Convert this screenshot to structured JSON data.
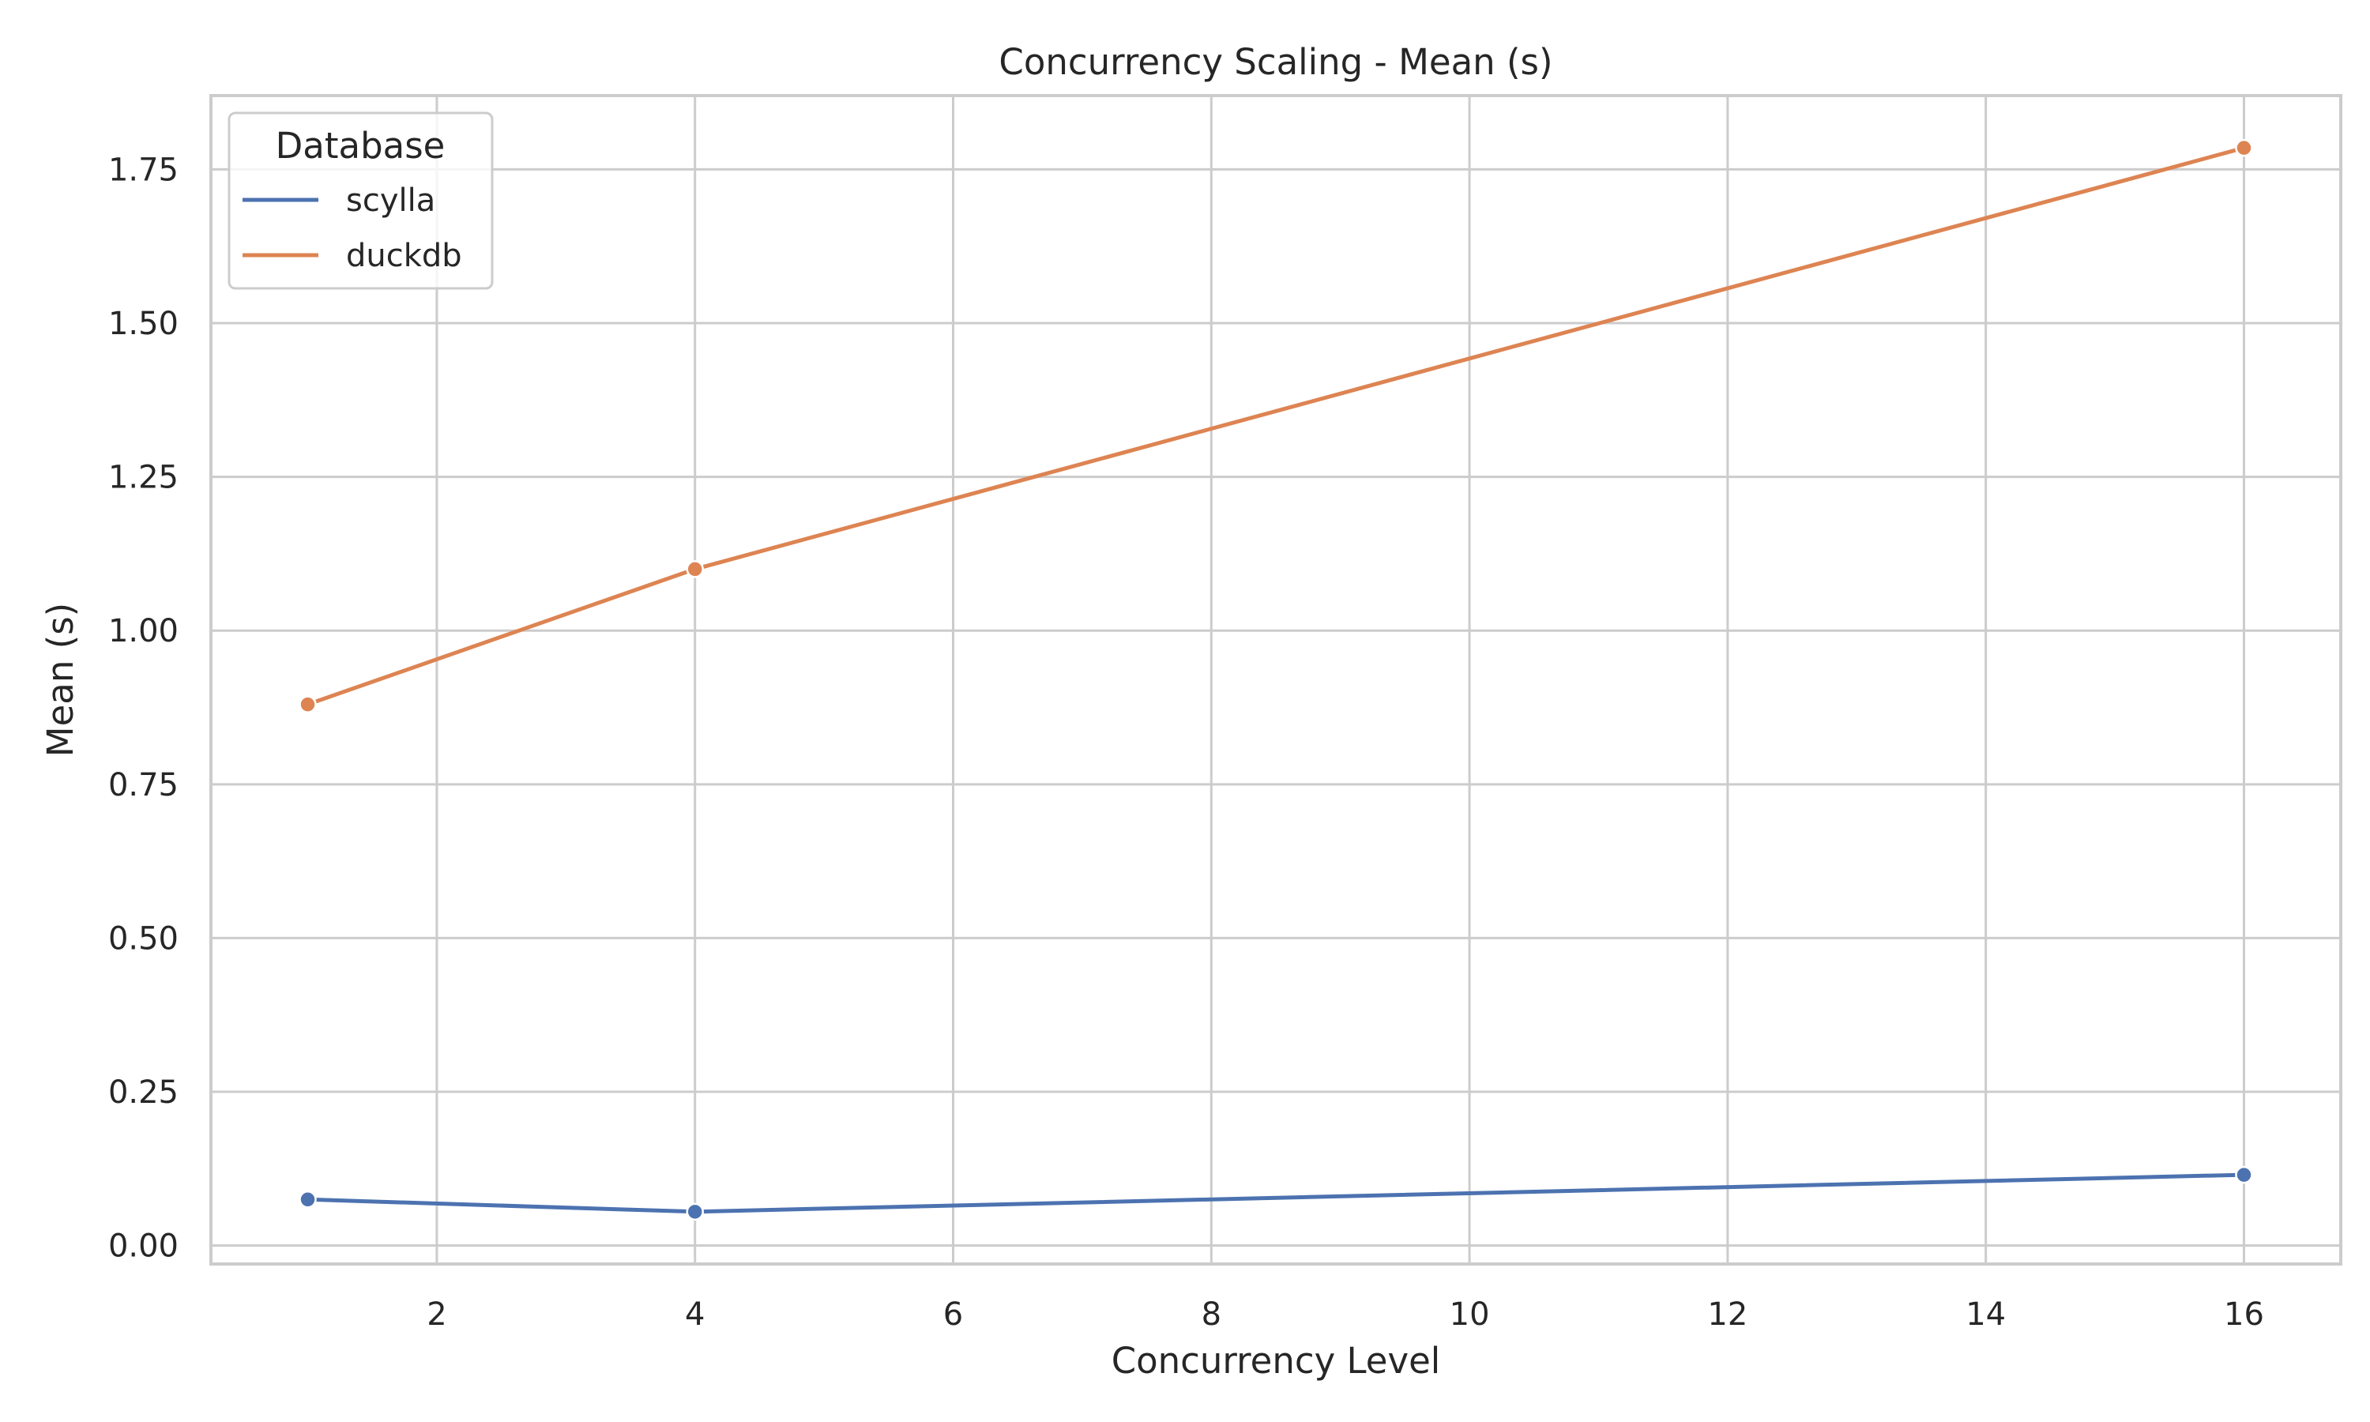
{
  "chart_data": {
    "type": "line",
    "title": "Concurrency Scaling - Mean (s)",
    "xlabel": "Concurrency Level",
    "ylabel": "Mean (s)",
    "xlim": [
      0.25,
      16.75
    ],
    "ylim": [
      -0.03,
      1.87
    ],
    "xticks": [
      2,
      4,
      6,
      8,
      10,
      12,
      14,
      16
    ],
    "xtick_labels": [
      "2",
      "4",
      "6",
      "8",
      "10",
      "12",
      "14",
      "16"
    ],
    "yticks": [
      0.0,
      0.25,
      0.5,
      0.75,
      1.0,
      1.25,
      1.5,
      1.75
    ],
    "ytick_labels": [
      "0.00",
      "0.25",
      "0.50",
      "0.75",
      "1.00",
      "1.25",
      "1.50",
      "1.75"
    ],
    "grid": true,
    "legend": {
      "title": "Database",
      "placement": "top-left"
    },
    "x": [
      1,
      4,
      16
    ],
    "series": [
      {
        "name": "scylla",
        "color": "#4c72b0",
        "values": [
          0.075,
          0.055,
          0.115
        ]
      },
      {
        "name": "duckdb",
        "color": "#dd8452",
        "values": [
          0.88,
          1.1,
          1.785
        ]
      }
    ]
  }
}
